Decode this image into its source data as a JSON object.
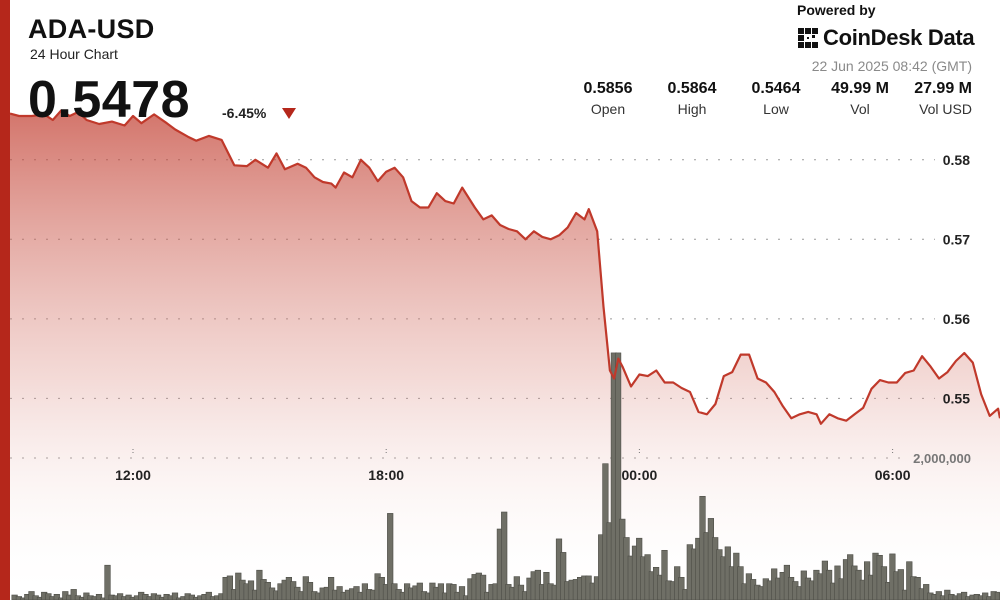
{
  "header": {
    "symbol": "ADA-USD",
    "subtitle": "24 Hour Chart",
    "price": "0.5478",
    "change": "-6.45%"
  },
  "branding": {
    "powered_by": "Powered by",
    "name": "CoinDesk Data",
    "timestamp": "22 Jun 2025 08:42 (GMT)"
  },
  "stats": [
    {
      "value": "0.5856",
      "label": "Open"
    },
    {
      "value": "0.5864",
      "label": "High"
    },
    {
      "value": "0.5464",
      "label": "Low"
    },
    {
      "value": "49.99 M",
      "label": "Vol"
    },
    {
      "value": "27.99 M",
      "label": "Vol USD"
    }
  ],
  "colors": {
    "accent": "#b5271b",
    "line": "#c0392b",
    "volume_bar": "#6f6f66"
  },
  "chart_data": {
    "type": "area",
    "x_ticks": [
      {
        "label": "12:00",
        "hour": 12
      },
      {
        "label": "18:00",
        "hour": 18
      },
      {
        "label": "00:00",
        "hour": 24
      },
      {
        "label": "06:00",
        "hour": 30
      }
    ],
    "x_range": [
      9,
      32.7
    ],
    "y_ticks": [
      0.55,
      0.56,
      0.57,
      0.58
    ],
    "y_tick_labels": [
      "0.55",
      "0.56",
      "0.57",
      "0.58"
    ],
    "ylim": [
      0.5415,
      0.5855
    ],
    "grid": true,
    "price_series": [
      [
        9.0,
        0.5858
      ],
      [
        9.3,
        0.5855
      ],
      [
        9.6,
        0.5855
      ],
      [
        9.9,
        0.5857
      ],
      [
        10.1,
        0.585
      ],
      [
        10.3,
        0.5862
      ],
      [
        10.5,
        0.5855
      ],
      [
        10.7,
        0.586
      ],
      [
        10.9,
        0.585
      ],
      [
        11.2,
        0.5845
      ],
      [
        11.5,
        0.5848
      ],
      [
        11.8,
        0.5843
      ],
      [
        12.0,
        0.5855
      ],
      [
        12.2,
        0.5846
      ],
      [
        12.5,
        0.5857
      ],
      [
        12.8,
        0.5846
      ],
      [
        13.0,
        0.5838
      ],
      [
        13.3,
        0.5829
      ],
      [
        13.5,
        0.5824
      ],
      [
        13.8,
        0.583
      ],
      [
        14.1,
        0.5825
      ],
      [
        14.4,
        0.5793
      ],
      [
        14.7,
        0.5792
      ],
      [
        14.9,
        0.58
      ],
      [
        15.2,
        0.579
      ],
      [
        15.4,
        0.5808
      ],
      [
        15.6,
        0.5788
      ],
      [
        15.9,
        0.5795
      ],
      [
        16.1,
        0.579
      ],
      [
        16.3,
        0.5778
      ],
      [
        16.5,
        0.5772
      ],
      [
        16.7,
        0.577
      ],
      [
        16.8,
        0.5765
      ],
      [
        17.0,
        0.5784
      ],
      [
        17.2,
        0.5778
      ],
      [
        17.4,
        0.58
      ],
      [
        17.6,
        0.579
      ],
      [
        17.8,
        0.5773
      ],
      [
        18.0,
        0.5785
      ],
      [
        18.2,
        0.579
      ],
      [
        18.4,
        0.5778
      ],
      [
        18.6,
        0.5748
      ],
      [
        18.8,
        0.574
      ],
      [
        19.0,
        0.574
      ],
      [
        19.2,
        0.5758
      ],
      [
        19.4,
        0.5748
      ],
      [
        19.6,
        0.5745
      ],
      [
        19.8,
        0.5765
      ],
      [
        20.1,
        0.574
      ],
      [
        20.3,
        0.5725
      ],
      [
        20.5,
        0.573
      ],
      [
        20.7,
        0.5718
      ],
      [
        20.9,
        0.5713
      ],
      [
        21.1,
        0.571
      ],
      [
        21.3,
        0.57
      ],
      [
        21.5,
        0.571
      ],
      [
        21.7,
        0.5703
      ],
      [
        21.9,
        0.57
      ],
      [
        22.1,
        0.5705
      ],
      [
        22.3,
        0.5715
      ],
      [
        22.5,
        0.5733
      ],
      [
        22.7,
        0.5725
      ],
      [
        22.8,
        0.5738
      ],
      [
        23.0,
        0.571
      ],
      [
        23.15,
        0.5615
      ],
      [
        23.3,
        0.5535
      ],
      [
        23.4,
        0.5525
      ],
      [
        23.5,
        0.555
      ],
      [
        23.6,
        0.554
      ],
      [
        23.8,
        0.5515
      ],
      [
        24.0,
        0.553
      ],
      [
        24.2,
        0.5528
      ],
      [
        24.4,
        0.5535
      ],
      [
        24.6,
        0.552
      ],
      [
        24.8,
        0.552
      ],
      [
        25.0,
        0.5513
      ],
      [
        25.2,
        0.5508
      ],
      [
        25.4,
        0.5483
      ],
      [
        25.6,
        0.548
      ],
      [
        25.8,
        0.5493
      ],
      [
        26.0,
        0.5528
      ],
      [
        26.2,
        0.5533
      ],
      [
        26.4,
        0.5555
      ],
      [
        26.6,
        0.5555
      ],
      [
        26.8,
        0.5525
      ],
      [
        27.0,
        0.552
      ],
      [
        27.2,
        0.5508
      ],
      [
        27.4,
        0.549
      ],
      [
        27.6,
        0.5475
      ],
      [
        27.8,
        0.548
      ],
      [
        28.0,
        0.5483
      ],
      [
        28.2,
        0.548
      ],
      [
        28.3,
        0.5468
      ],
      [
        28.5,
        0.548
      ],
      [
        28.7,
        0.5475
      ],
      [
        28.9,
        0.5472
      ],
      [
        29.1,
        0.548
      ],
      [
        29.3,
        0.5488
      ],
      [
        29.5,
        0.5512
      ],
      [
        29.7,
        0.5523
      ],
      [
        29.9,
        0.552
      ],
      [
        30.1,
        0.552
      ],
      [
        30.3,
        0.5532
      ],
      [
        30.5,
        0.5535
      ],
      [
        30.7,
        0.5553
      ],
      [
        30.9,
        0.554
      ],
      [
        31.1,
        0.5525
      ],
      [
        31.3,
        0.5533
      ],
      [
        31.5,
        0.5547
      ],
      [
        31.7,
        0.5557
      ],
      [
        31.9,
        0.5545
      ],
      [
        32.1,
        0.5505
      ],
      [
        32.3,
        0.5478
      ],
      [
        32.5,
        0.5487
      ],
      [
        32.7,
        0.5475
      ]
    ],
    "volume_axis_label": "2,000,000",
    "volume_axis_value": 2000000,
    "volume_max": 2000000,
    "volume_series": [
      [
        9.0,
        60000
      ],
      [
        9.1,
        40000
      ],
      [
        9.2,
        70000
      ],
      [
        9.3,
        50000
      ],
      [
        9.4,
        30000
      ],
      [
        9.5,
        80000
      ],
      [
        9.6,
        120000
      ],
      [
        9.7,
        60000
      ],
      [
        9.8,
        40000
      ],
      [
        9.9,
        110000
      ],
      [
        10.0,
        90000
      ],
      [
        10.1,
        50000
      ],
      [
        10.2,
        80000
      ],
      [
        10.3,
        30000
      ],
      [
        10.4,
        120000
      ],
      [
        10.5,
        70000
      ],
      [
        10.6,
        150000
      ],
      [
        10.7,
        60000
      ],
      [
        10.8,
        40000
      ],
      [
        10.9,
        100000
      ],
      [
        11.0,
        60000
      ],
      [
        11.1,
        50000
      ],
      [
        11.2,
        80000
      ],
      [
        11.3,
        30000
      ],
      [
        11.4,
        490000
      ],
      [
        11.5,
        70000
      ],
      [
        11.6,
        60000
      ],
      [
        11.7,
        90000
      ],
      [
        11.8,
        50000
      ],
      [
        11.9,
        70000
      ],
      [
        12.0,
        40000
      ],
      [
        12.1,
        60000
      ],
      [
        12.2,
        110000
      ],
      [
        12.3,
        80000
      ],
      [
        12.4,
        50000
      ],
      [
        12.5,
        90000
      ],
      [
        12.6,
        70000
      ],
      [
        12.7,
        40000
      ],
      [
        12.8,
        80000
      ],
      [
        12.9,
        60000
      ],
      [
        13.0,
        100000
      ],
      [
        13.1,
        30000
      ],
      [
        13.2,
        50000
      ],
      [
        13.3,
        90000
      ],
      [
        13.4,
        70000
      ],
      [
        13.5,
        40000
      ],
      [
        13.6,
        60000
      ],
      [
        13.7,
        80000
      ],
      [
        13.8,
        110000
      ],
      [
        13.9,
        50000
      ],
      [
        14.0,
        60000
      ],
      [
        14.1,
        90000
      ],
      [
        14.2,
        320000
      ],
      [
        14.3,
        340000
      ],
      [
        14.4,
        150000
      ],
      [
        14.5,
        380000
      ],
      [
        14.6,
        280000
      ],
      [
        14.7,
        230000
      ],
      [
        14.8,
        270000
      ],
      [
        14.9,
        140000
      ],
      [
        15.0,
        420000
      ],
      [
        15.1,
        290000
      ],
      [
        15.2,
        250000
      ],
      [
        15.3,
        170000
      ],
      [
        15.4,
        130000
      ],
      [
        15.5,
        230000
      ],
      [
        15.6,
        280000
      ],
      [
        15.7,
        320000
      ],
      [
        15.8,
        260000
      ],
      [
        15.9,
        180000
      ],
      [
        16.0,
        120000
      ],
      [
        16.1,
        330000
      ],
      [
        16.2,
        250000
      ],
      [
        16.3,
        120000
      ],
      [
        16.4,
        100000
      ],
      [
        16.5,
        170000
      ],
      [
        16.6,
        180000
      ],
      [
        16.7,
        320000
      ],
      [
        16.8,
        140000
      ],
      [
        16.9,
        190000
      ],
      [
        17.0,
        110000
      ],
      [
        17.1,
        140000
      ],
      [
        17.2,
        160000
      ],
      [
        17.3,
        190000
      ],
      [
        17.4,
        110000
      ],
      [
        17.5,
        230000
      ],
      [
        17.6,
        150000
      ],
      [
        17.7,
        140000
      ],
      [
        17.8,
        370000
      ],
      [
        17.9,
        320000
      ],
      [
        18.0,
        220000
      ],
      [
        18.1,
        1220000
      ],
      [
        18.2,
        230000
      ],
      [
        18.3,
        150000
      ],
      [
        18.4,
        110000
      ],
      [
        18.5,
        230000
      ],
      [
        18.6,
        170000
      ],
      [
        18.7,
        200000
      ],
      [
        18.8,
        240000
      ],
      [
        18.9,
        120000
      ],
      [
        19.0,
        100000
      ],
      [
        19.1,
        240000
      ],
      [
        19.2,
        180000
      ],
      [
        19.3,
        230000
      ],
      [
        19.4,
        100000
      ],
      [
        19.5,
        230000
      ],
      [
        19.6,
        220000
      ],
      [
        19.7,
        110000
      ],
      [
        19.8,
        190000
      ],
      [
        19.9,
        60000
      ],
      [
        20.0,
        300000
      ],
      [
        20.1,
        360000
      ],
      [
        20.2,
        380000
      ],
      [
        20.3,
        350000
      ],
      [
        20.4,
        110000
      ],
      [
        20.5,
        220000
      ],
      [
        20.6,
        230000
      ],
      [
        20.7,
        1000000
      ],
      [
        20.8,
        1240000
      ],
      [
        20.9,
        220000
      ],
      [
        21.0,
        180000
      ],
      [
        21.1,
        330000
      ],
      [
        21.2,
        210000
      ],
      [
        21.3,
        120000
      ],
      [
        21.4,
        310000
      ],
      [
        21.5,
        400000
      ],
      [
        21.6,
        420000
      ],
      [
        21.7,
        220000
      ],
      [
        21.8,
        390000
      ],
      [
        21.9,
        230000
      ],
      [
        22.0,
        210000
      ],
      [
        22.1,
        860000
      ],
      [
        22.2,
        670000
      ],
      [
        22.3,
        260000
      ],
      [
        22.4,
        280000
      ],
      [
        22.5,
        290000
      ],
      [
        22.6,
        320000
      ],
      [
        22.7,
        340000
      ],
      [
        22.8,
        340000
      ],
      [
        22.9,
        240000
      ],
      [
        23.0,
        330000
      ],
      [
        23.1,
        920000
      ],
      [
        23.2,
        1920000
      ],
      [
        23.3,
        1090000
      ],
      [
        23.4,
        3480000
      ],
      [
        23.5,
        3480000
      ],
      [
        23.6,
        1140000
      ],
      [
        23.7,
        880000
      ],
      [
        23.8,
        620000
      ],
      [
        23.9,
        760000
      ],
      [
        24.0,
        870000
      ],
      [
        24.1,
        610000
      ],
      [
        24.2,
        640000
      ],
      [
        24.3,
        400000
      ],
      [
        24.4,
        460000
      ],
      [
        24.5,
        350000
      ],
      [
        24.6,
        700000
      ],
      [
        24.7,
        270000
      ],
      [
        24.8,
        260000
      ],
      [
        24.9,
        470000
      ],
      [
        25.0,
        320000
      ],
      [
        25.1,
        150000
      ],
      [
        25.2,
        780000
      ],
      [
        25.3,
        720000
      ],
      [
        25.4,
        870000
      ],
      [
        25.5,
        1460000
      ],
      [
        25.6,
        950000
      ],
      [
        25.7,
        1150000
      ],
      [
        25.8,
        880000
      ],
      [
        25.9,
        710000
      ],
      [
        26.0,
        610000
      ],
      [
        26.1,
        750000
      ],
      [
        26.2,
        470000
      ],
      [
        26.3,
        660000
      ],
      [
        26.4,
        470000
      ],
      [
        26.5,
        230000
      ],
      [
        26.6,
        370000
      ],
      [
        26.7,
        290000
      ],
      [
        26.8,
        210000
      ],
      [
        26.9,
        190000
      ],
      [
        27.0,
        300000
      ],
      [
        27.1,
        270000
      ],
      [
        27.2,
        440000
      ],
      [
        27.3,
        310000
      ],
      [
        27.4,
        390000
      ],
      [
        27.5,
        490000
      ],
      [
        27.6,
        320000
      ],
      [
        27.7,
        260000
      ],
      [
        27.8,
        190000
      ],
      [
        27.9,
        410000
      ],
      [
        28.0,
        310000
      ],
      [
        28.1,
        270000
      ],
      [
        28.2,
        420000
      ],
      [
        28.3,
        370000
      ],
      [
        28.4,
        550000
      ],
      [
        28.5,
        420000
      ],
      [
        28.6,
        240000
      ],
      [
        28.7,
        480000
      ],
      [
        28.8,
        300000
      ],
      [
        28.9,
        570000
      ],
      [
        29.0,
        640000
      ],
      [
        29.1,
        480000
      ],
      [
        29.2,
        420000
      ],
      [
        29.3,
        280000
      ],
      [
        29.4,
        540000
      ],
      [
        29.5,
        350000
      ],
      [
        29.6,
        660000
      ],
      [
        29.7,
        630000
      ],
      [
        29.8,
        470000
      ],
      [
        29.9,
        250000
      ],
      [
        30.0,
        650000
      ],
      [
        30.1,
        400000
      ],
      [
        30.2,
        430000
      ],
      [
        30.3,
        140000
      ],
      [
        30.4,
        540000
      ],
      [
        30.5,
        330000
      ],
      [
        30.6,
        320000
      ],
      [
        30.7,
        160000
      ],
      [
        30.8,
        220000
      ],
      [
        30.9,
        100000
      ],
      [
        31.0,
        80000
      ],
      [
        31.1,
        120000
      ],
      [
        31.2,
        60000
      ],
      [
        31.3,
        140000
      ],
      [
        31.4,
        80000
      ],
      [
        31.5,
        60000
      ],
      [
        31.6,
        90000
      ],
      [
        31.7,
        110000
      ],
      [
        31.8,
        50000
      ],
      [
        31.9,
        70000
      ],
      [
        32.0,
        80000
      ],
      [
        32.1,
        60000
      ],
      [
        32.2,
        100000
      ],
      [
        32.3,
        50000
      ],
      [
        32.4,
        120000
      ],
      [
        32.5,
        110000
      ],
      [
        32.6,
        90000
      ],
      [
        32.7,
        70000
      ]
    ]
  }
}
